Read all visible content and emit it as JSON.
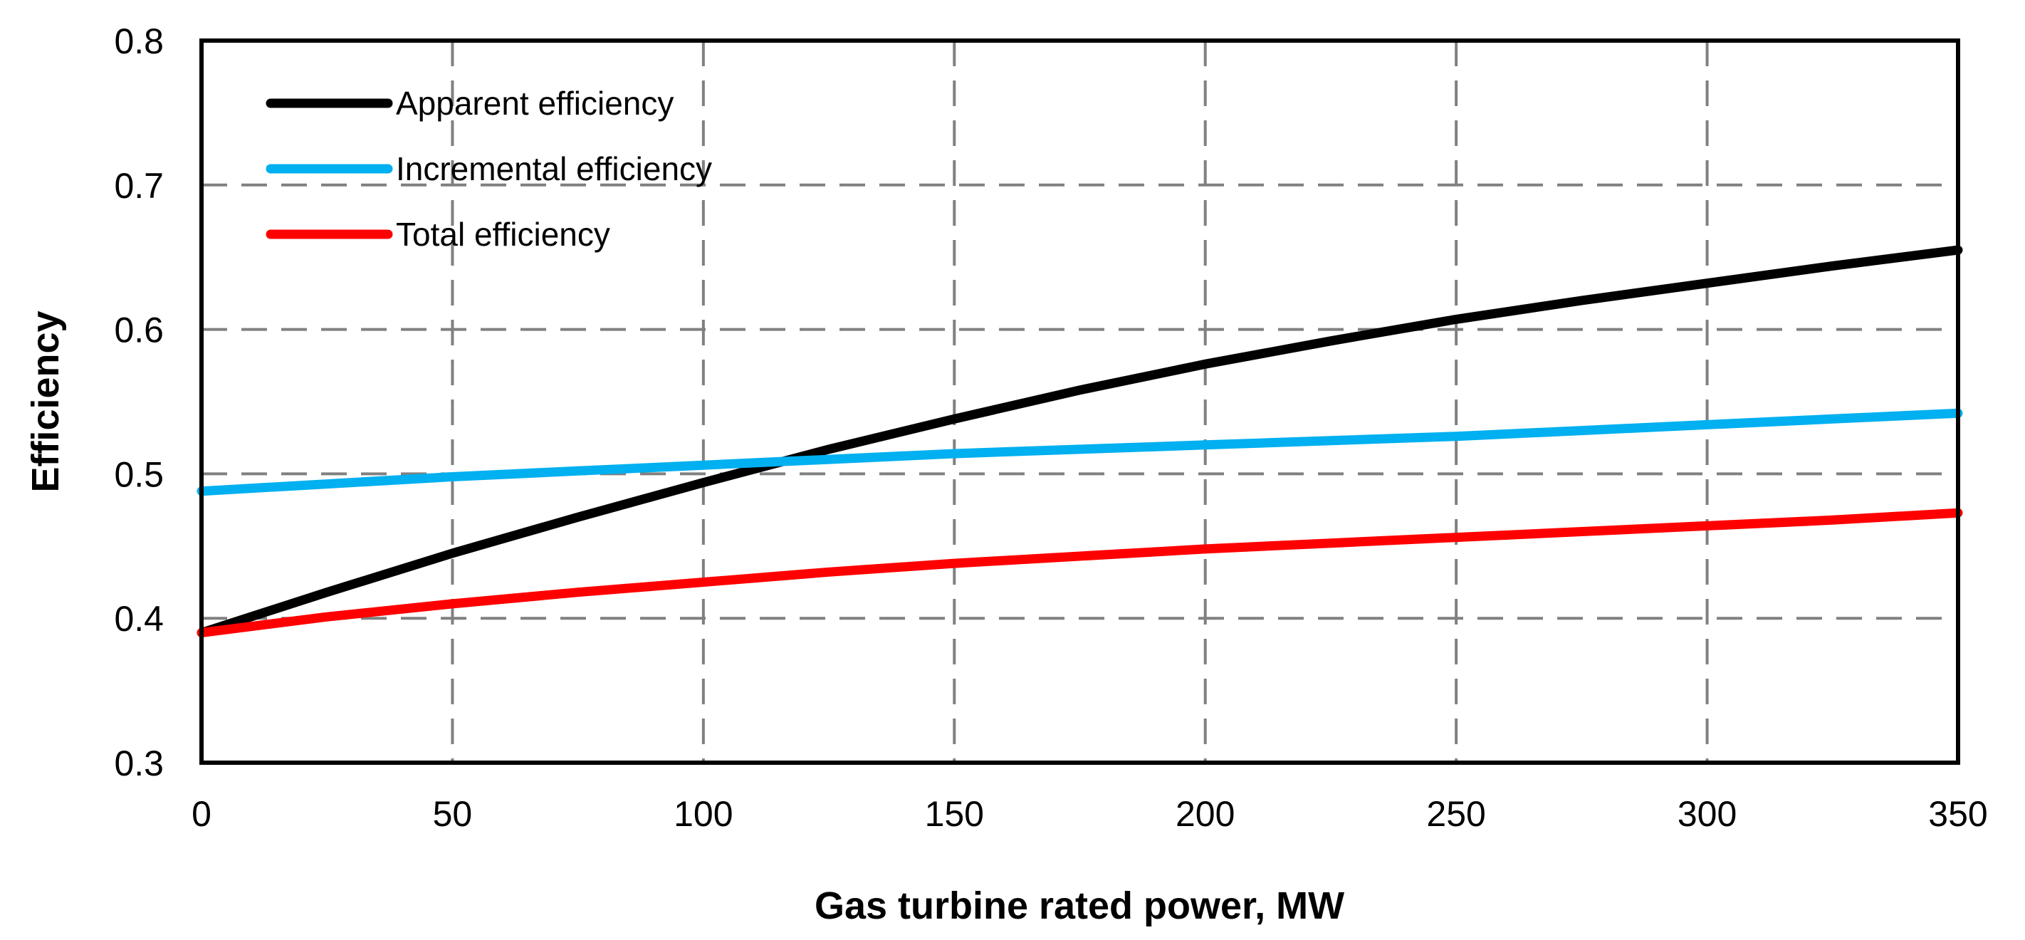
{
  "chart_data": {
    "type": "line",
    "title": "",
    "xlabel": "Gas turbine rated power, MW",
    "ylabel": "Efficiency",
    "xlim": [
      0,
      350
    ],
    "ylim": [
      0.3,
      0.8
    ],
    "xticks": [
      0,
      50,
      100,
      150,
      200,
      250,
      300,
      350
    ],
    "yticks": [
      0.3,
      0.4,
      0.5,
      0.6,
      0.7,
      0.8
    ],
    "xtick_labels": [
      "0",
      "50",
      "100",
      "150",
      "200",
      "250",
      "300",
      "350"
    ],
    "ytick_labels": [
      "0.3",
      "0.4",
      "0.5",
      "0.6",
      "0.7",
      "0.8"
    ],
    "grid": true,
    "legend_position": "top-left",
    "x": [
      0,
      25,
      50,
      75,
      100,
      125,
      150,
      175,
      200,
      225,
      250,
      275,
      300,
      325,
      350
    ],
    "series": [
      {
        "name": "Apparent efficiency",
        "color": "#000000",
        "values": [
          0.39,
          0.418,
          0.445,
          0.47,
          0.494,
          0.517,
          0.538,
          0.558,
          0.576,
          0.592,
          0.607,
          0.62,
          0.632,
          0.644,
          0.655
        ]
      },
      {
        "name": "Incremental efficiency",
        "color": "#00B0F0",
        "values": [
          0.488,
          0.493,
          0.498,
          0.502,
          0.506,
          0.51,
          0.514,
          0.517,
          0.52,
          0.523,
          0.526,
          0.53,
          0.534,
          0.538,
          0.542
        ]
      },
      {
        "name": "Total efficiency",
        "color": "#FF0000",
        "values": [
          0.39,
          0.401,
          0.41,
          0.418,
          0.425,
          0.432,
          0.438,
          0.443,
          0.448,
          0.452,
          0.456,
          0.46,
          0.464,
          0.468,
          0.473
        ]
      }
    ]
  }
}
